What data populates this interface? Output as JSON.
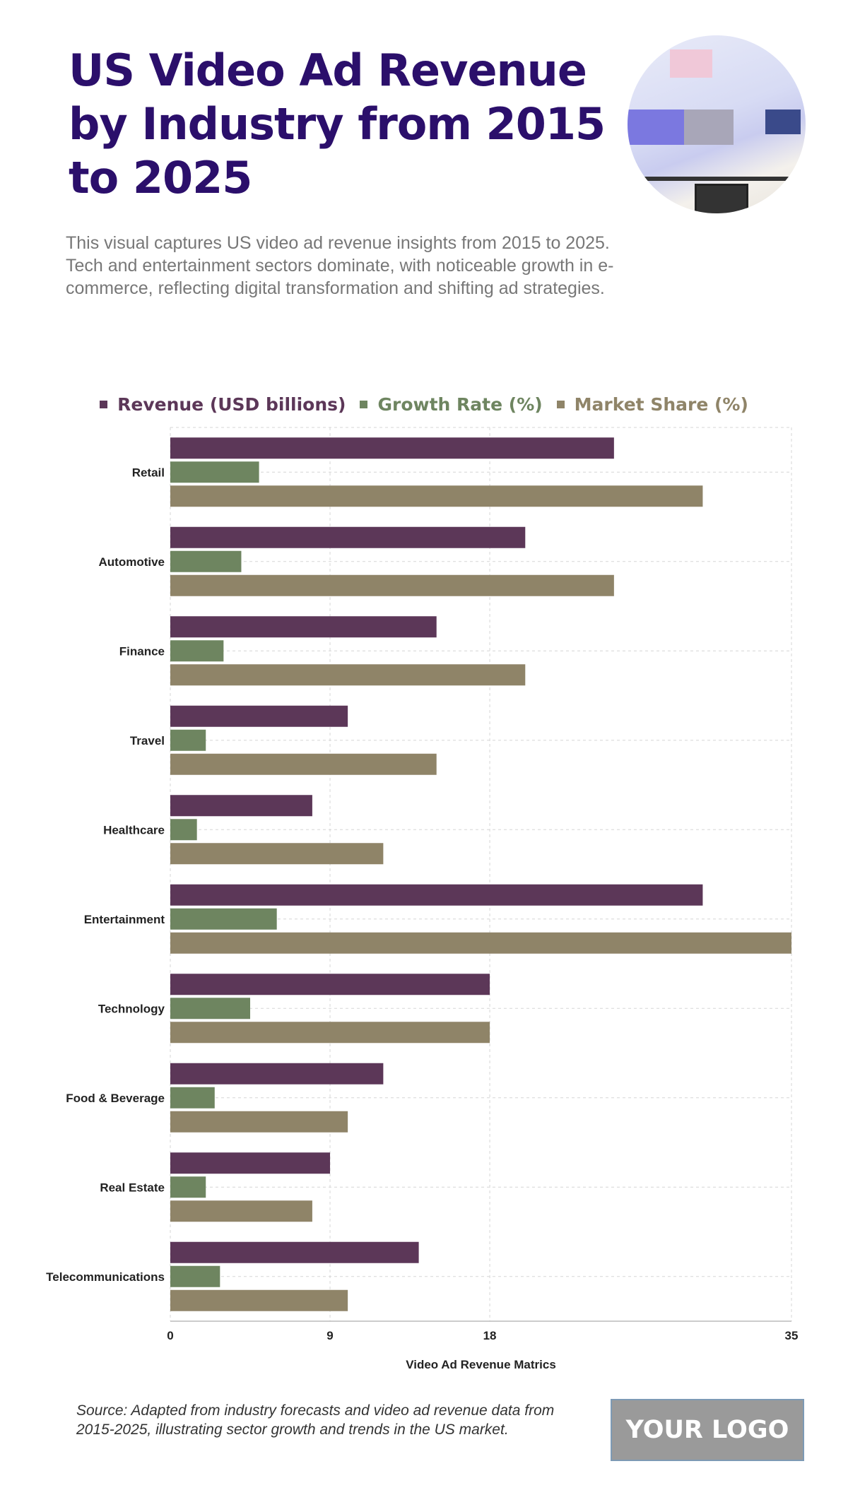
{
  "title": "US Video Ad Revenue by Industry from 2015 to 2025",
  "subtitle": "This visual captures US video ad revenue insights from 2015 to 2025. Tech and entertainment sectors dominate, with noticeable growth in e-commerce, reflecting digital transformation and shifting ad strategies.",
  "source": "Source: Adapted from industry forecasts and video ad revenue data from 2015-2025, illustrating sector growth and trends in the US market.",
  "logo": "YOUR LOGO",
  "chart_data": {
    "type": "bar",
    "orientation": "horizontal",
    "categories": [
      "Retail",
      "Automotive",
      "Finance",
      "Travel",
      "Healthcare",
      "Entertainment",
      "Technology",
      "Food & Beverage",
      "Real Estate",
      "Telecommunications"
    ],
    "series": [
      {
        "name": "Revenue (USD billions)",
        "color": "#5c3758",
        "values": [
          25,
          20,
          15,
          10,
          8,
          30,
          18,
          12,
          9,
          14
        ]
      },
      {
        "name": "Growth Rate (%)",
        "color": "#6e8560",
        "values": [
          5,
          4,
          3,
          2,
          1.5,
          6,
          4.5,
          2.5,
          2,
          2.8
        ]
      },
      {
        "name": "Market Share (%)",
        "color": "#8f8468",
        "values": [
          30,
          25,
          20,
          15,
          12,
          35,
          18,
          10,
          8,
          10
        ]
      }
    ],
    "xlabel": "Video Ad Revenue Matrics",
    "ylabel": "",
    "xticks": [
      0,
      9,
      18,
      35
    ],
    "xlim": [
      0,
      35
    ],
    "grid": true,
    "legend": "top"
  }
}
